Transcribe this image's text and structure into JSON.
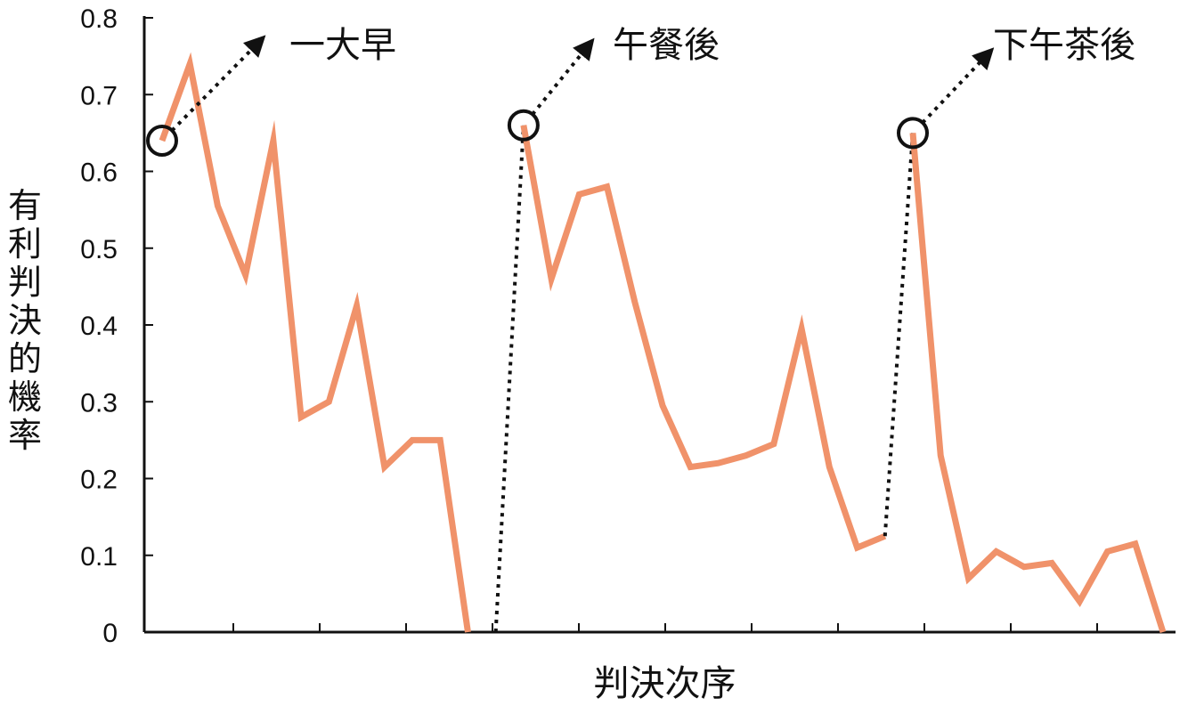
{
  "chart_data": {
    "type": "line",
    "xlabel": "判決次序",
    "ylabel": "有利判決的機率",
    "ylim": [
      0,
      0.8
    ],
    "yticks": [
      "0",
      "0.1",
      "0.2",
      "0.3",
      "0.4",
      "0.5",
      "0.6",
      "0.7",
      "0.8"
    ],
    "grid": false,
    "line_color": "#f0926a",
    "session_line_style": "dotted",
    "segments": [
      {
        "name": "一大早",
        "x": [
          1,
          2,
          3,
          4,
          5,
          6,
          7,
          8,
          9,
          10,
          11,
          12,
          13
        ],
        "y": [
          0.64,
          0.74,
          0.555,
          0.465,
          0.64,
          0.28,
          0.3,
          0.425,
          0.215,
          0.25,
          0.25,
          0.0,
          null
        ]
      },
      {
        "name": "午餐後",
        "x": [
          13,
          14,
          15,
          16,
          17,
          18,
          19,
          20,
          21,
          22,
          23,
          24,
          25,
          26,
          27
        ],
        "y": [
          0.0,
          0.66,
          0.46,
          0.57,
          0.58,
          0.43,
          0.295,
          0.215,
          0.22,
          0.23,
          0.245,
          0.395,
          0.215,
          0.11,
          0.125
        ]
      },
      {
        "name": "下午茶後",
        "x": [
          27,
          28,
          29,
          30,
          31,
          32,
          33,
          34,
          35,
          36,
          37
        ],
        "y": [
          0.125,
          0.65,
          0.23,
          0.07,
          0.105,
          0.085,
          0.09,
          0.04,
          0.105,
          0.115,
          0.0
        ]
      }
    ],
    "annotations": [
      "一大早",
      "午餐後",
      "下午茶後"
    ]
  }
}
